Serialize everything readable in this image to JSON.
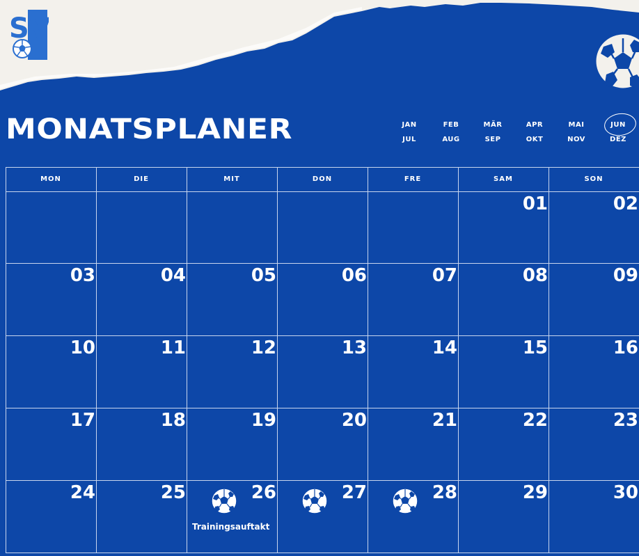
{
  "logo": {
    "text": "SV"
  },
  "title": "MONATSPLANER",
  "months_row1": [
    "JAN",
    "FEB",
    "MÄR",
    "APR",
    "MAI",
    "JUN"
  ],
  "months_row2": [
    "JUL",
    "AUG",
    "SEP",
    "OKT",
    "NOV",
    "DEZ"
  ],
  "selected_month": "JUN",
  "weekdays": [
    "MON",
    "DIE",
    "MIT",
    "DON",
    "FRE",
    "SAM",
    "SON"
  ],
  "weeks": [
    [
      "",
      "",
      "",
      "",
      "",
      "01",
      "02"
    ],
    [
      "03",
      "04",
      "05",
      "06",
      "07",
      "08",
      "09"
    ],
    [
      "10",
      "11",
      "12",
      "13",
      "14",
      "15",
      "16"
    ],
    [
      "17",
      "18",
      "19",
      "20",
      "21",
      "22",
      "23"
    ],
    [
      "24",
      "25",
      "26",
      "27",
      "28",
      "29",
      "30"
    ]
  ],
  "events": [
    {
      "day": "26",
      "icon": "soccer-ball-icon",
      "label": "Trainingsauftakt"
    },
    {
      "day": "27",
      "icon": "soccer-ball-icon"
    },
    {
      "day": "28",
      "icon": "soccer-ball-icon"
    }
  ],
  "colors": {
    "background": "#0d47a8",
    "paper": "#f3f1ec",
    "text": "#ffffff",
    "gridline": "#c9d6ee"
  }
}
